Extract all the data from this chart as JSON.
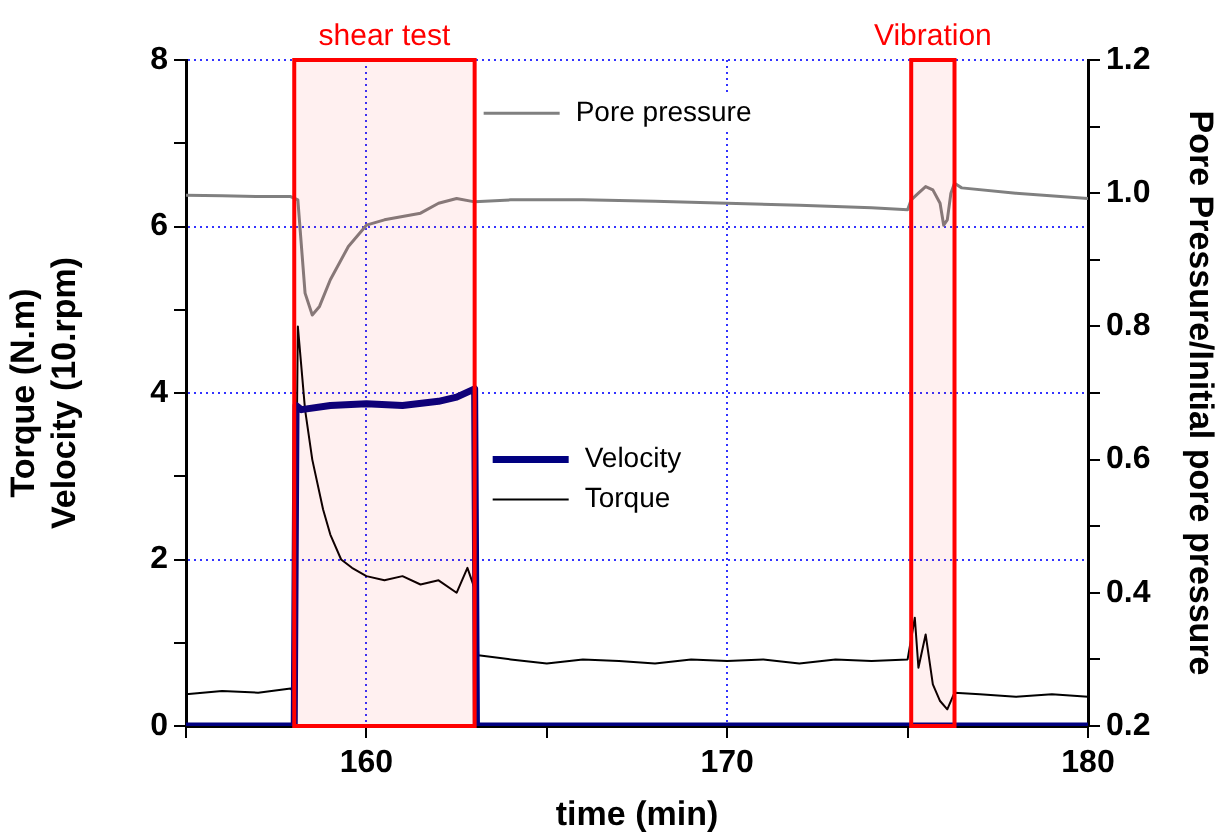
{
  "chart_data": {
    "type": "line",
    "xlabel": "time (min)",
    "ylabel": "Torque (N.m)\nVelocity (10.rpm)",
    "y2label": "Pore Pressure/Initial pore pressure",
    "xlim": [
      155,
      180
    ],
    "xticks": [
      {
        "value": 155,
        "label": null
      },
      160,
      {
        "value": 165,
        "label": null
      },
      170,
      {
        "value": 175,
        "label": null
      },
      180
    ],
    "ylim": [
      0,
      8
    ],
    "yticks": [
      0,
      {
        "value": 1,
        "label": null
      },
      2,
      {
        "value": 3,
        "label": null
      },
      4,
      {
        "value": 5,
        "label": null
      },
      6,
      {
        "value": 7,
        "label": null
      },
      8
    ],
    "y2lim": [
      0.2,
      1.2
    ],
    "y2ticks": [
      {
        "value": 0.2,
        "label": "0.2"
      },
      {
        "value": 0.3,
        "label": null
      },
      {
        "value": 0.4,
        "label": "0.4"
      },
      {
        "value": 0.5,
        "label": null
      },
      {
        "value": 0.6,
        "label": "0.6"
      },
      {
        "value": 0.7,
        "label": null
      },
      {
        "value": 0.8,
        "label": "0.8"
      },
      {
        "value": 0.9,
        "label": null
      },
      {
        "value": 1.0,
        "label": "1.0"
      },
      {
        "value": 1.1,
        "label": null
      },
      {
        "value": 1.2,
        "label": "1.2"
      }
    ],
    "grid": true,
    "legend": "center",
    "marker": "none",
    "line_style": "solid",
    "bands": [
      {
        "axis": "x",
        "from": 158,
        "to": 163,
        "label": "shear test",
        "color": "#ff0000"
      },
      {
        "axis": "x",
        "from": 175.1,
        "to": 176.3,
        "label": "Vibration",
        "color": "#ff0000"
      }
    ],
    "series": [
      {
        "name": "Pore pressure",
        "color": "#808080",
        "axis": "y2",
        "x": [
          155,
          156,
          157,
          157.9,
          158.1,
          158.3,
          158.5,
          158.7,
          159,
          159.5,
          160,
          160.5,
          161,
          161.5,
          162,
          162.5,
          163,
          164,
          166,
          168,
          170,
          172,
          174,
          175,
          175.1,
          175.3,
          175.5,
          175.7,
          175.9,
          176,
          176.1,
          176.2,
          176.3,
          176.5,
          178,
          180
        ],
        "values": [
          0.997,
          0.996,
          0.995,
          0.995,
          0.99,
          0.85,
          0.817,
          0.83,
          0.87,
          0.92,
          0.952,
          0.96,
          0.965,
          0.97,
          0.985,
          0.992,
          0.987,
          0.99,
          0.99,
          0.988,
          0.985,
          0.982,
          0.978,
          0.975,
          0.99,
          1.0,
          1.01,
          1.005,
          0.985,
          0.952,
          0.96,
          1.0,
          1.015,
          1.008,
          1.0,
          0.992
        ]
      },
      {
        "name": "Velocity",
        "color": "#000080",
        "x": [
          155,
          158,
          158.05,
          158.2,
          159,
          160,
          161,
          162,
          162.5,
          163,
          163.05,
          180
        ],
        "values": [
          0,
          0,
          3.85,
          3.8,
          3.85,
          3.87,
          3.85,
          3.9,
          3.95,
          4.05,
          0,
          0
        ]
      },
      {
        "name": "Torque",
        "color": "#000000",
        "x": [
          155,
          156,
          157,
          157.9,
          158,
          158.1,
          158.3,
          158.5,
          158.8,
          159,
          159.3,
          159.6,
          160,
          160.5,
          161,
          161.5,
          162,
          162.5,
          162.8,
          163,
          163.1,
          164,
          165,
          166,
          167,
          168,
          169,
          170,
          171,
          172,
          173,
          174,
          175,
          175.2,
          175.3,
          175.5,
          175.7,
          175.9,
          176.1,
          176.3,
          177,
          178,
          179,
          180
        ],
        "values": [
          0.38,
          0.42,
          0.4,
          0.45,
          0.4,
          4.8,
          3.8,
          3.2,
          2.6,
          2.3,
          2.0,
          1.9,
          1.8,
          1.75,
          1.8,
          1.7,
          1.75,
          1.6,
          1.9,
          1.65,
          0.85,
          0.8,
          0.75,
          0.8,
          0.78,
          0.75,
          0.8,
          0.78,
          0.8,
          0.75,
          0.8,
          0.78,
          0.8,
          1.3,
          0.7,
          1.1,
          0.5,
          0.3,
          0.2,
          0.4,
          0.38,
          0.35,
          0.38,
          0.35
        ]
      }
    ]
  }
}
